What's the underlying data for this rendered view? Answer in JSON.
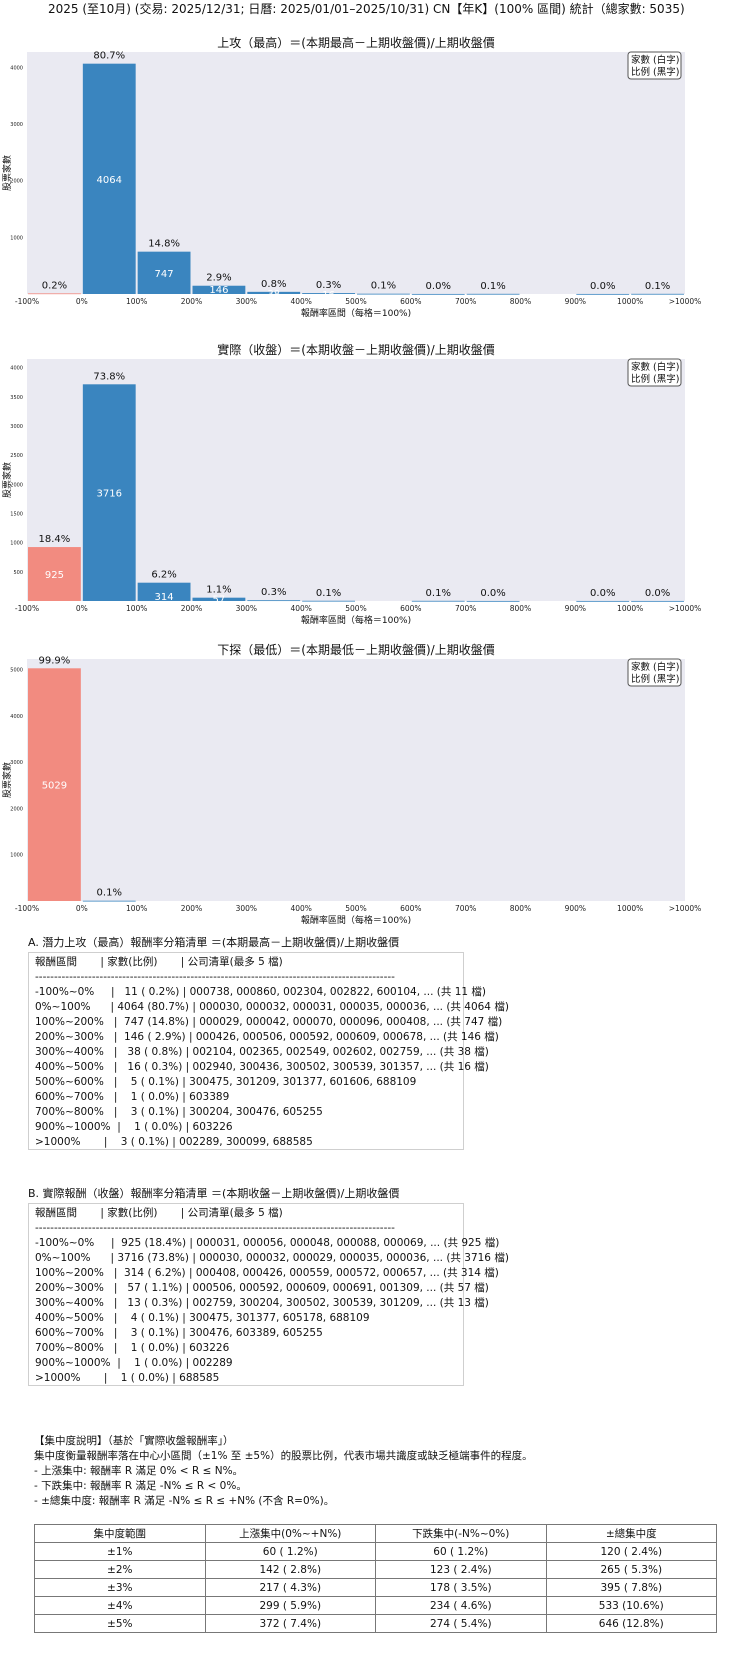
{
  "header": {
    "title": "2025 (至10月) (交易: 2025/12/31; 日曆: 2025/01/01–2025/10/31) CN【年K】(100% 區間) 統計（總家數: 5035)"
  },
  "legend": {
    "line1": "家數 (白字)",
    "line2": "比例 (黑字)"
  },
  "colors": {
    "positive": "#3a85bf",
    "negative": "#f28b80",
    "panel_bg": "#eaeaf2"
  },
  "chart_data": [
    {
      "type": "bar",
      "title": "上攻（最高）＝(本期最高－上期收盤價)/上期收盤價",
      "xlabel": "報酬率區間（每格＝100%)",
      "ylabel": "股票家數",
      "ylim": [
        0,
        4270
      ],
      "yticks": [
        0,
        1000,
        2000,
        3000,
        4000
      ],
      "xticks": [
        "-100%",
        "0%",
        "100%",
        "200%",
        "300%",
        "400%",
        "500%",
        "600%",
        "700%",
        "800%",
        "900%",
        "1000%",
        ">1000%"
      ],
      "bins": [
        "-100%~0%",
        "0%~100%",
        "100%~200%",
        "200%~300%",
        "300%~400%",
        "400%~500%",
        "500%~600%",
        "600%~700%",
        "700%~800%",
        "800%~900%",
        "900%~1000%",
        ">1000%"
      ],
      "counts": [
        11,
        4064,
        747,
        146,
        38,
        16,
        5,
        1,
        3,
        0,
        1,
        3
      ],
      "percent_labels": [
        "0.2%",
        "80.7%",
        "14.8%",
        "2.9%",
        "0.8%",
        "0.3%",
        "0.1%",
        "0.0%",
        "0.1%",
        "",
        "0.0%",
        "0.1%"
      ],
      "count_labels": [
        "",
        "4064",
        "747",
        "146",
        "38",
        "16",
        "",
        "",
        "",
        "",
        "",
        ""
      ]
    },
    {
      "type": "bar",
      "title": "實際（收盤）＝(本期收盤－上期收盤價)/上期收盤價",
      "xlabel": "報酬率區間（每格＝100%)",
      "ylabel": "股票家數",
      "ylim": [
        0,
        4150
      ],
      "yticks": [
        0,
        500,
        1000,
        1500,
        2000,
        2500,
        3000,
        3500,
        4000
      ],
      "xticks": [
        "-100%",
        "0%",
        "100%",
        "200%",
        "300%",
        "400%",
        "500%",
        "600%",
        "700%",
        "800%",
        "900%",
        "1000%",
        ">1000%"
      ],
      "bins": [
        "-100%~0%",
        "0%~100%",
        "100%~200%",
        "200%~300%",
        "300%~400%",
        "400%~500%",
        "500%~600%",
        "600%~700%",
        "700%~800%",
        "800%~900%",
        "900%~1000%",
        ">1000%"
      ],
      "counts": [
        925,
        3716,
        314,
        57,
        13,
        4,
        0,
        3,
        1,
        0,
        1,
        1
      ],
      "percent_labels": [
        "18.4%",
        "73.8%",
        "6.2%",
        "1.1%",
        "0.3%",
        "0.1%",
        "",
        "0.1%",
        "0.0%",
        "",
        "0.0%",
        "0.0%"
      ],
      "count_labels": [
        "925",
        "3716",
        "314",
        "57",
        "",
        "",
        "",
        "",
        "",
        "",
        "",
        ""
      ]
    },
    {
      "type": "bar",
      "title": "下探（最低）＝(本期最低－上期收盤價)/上期收盤價",
      "xlabel": "報酬率區間（每格＝100%)",
      "ylabel": "股票家數",
      "ylim": [
        0,
        5230
      ],
      "yticks": [
        0,
        1000,
        2000,
        3000,
        4000,
        5000
      ],
      "xticks": [
        "-100%",
        "0%",
        "100%",
        "200%",
        "300%",
        "400%",
        "500%",
        "600%",
        "700%",
        "800%",
        "900%",
        "1000%",
        ">1000%"
      ],
      "bins": [
        "-100%~0%",
        "0%~100%",
        "100%~200%",
        "200%~300%",
        "300%~400%",
        "400%~500%",
        "500%~600%",
        "600%~700%",
        "700%~800%",
        "800%~900%",
        "900%~1000%",
        ">1000%"
      ],
      "counts": [
        5029,
        6,
        0,
        0,
        0,
        0,
        0,
        0,
        0,
        0,
        0,
        0
      ],
      "percent_labels": [
        "99.9%",
        "0.1%",
        "",
        "",
        "",
        "",
        "",
        "",
        "",
        "",
        "",
        ""
      ],
      "count_labels": [
        "5029",
        "",
        "",
        "",
        "",
        "",
        "",
        "",
        "",
        "",
        "",
        ""
      ]
    }
  ],
  "listA": {
    "title": "A. 潛力上攻（最高）報酬率分箱清單 ＝(本期最高－上期收盤價)/上期收盤價",
    "lines": [
      "報酬區間       | 家數(比例)       | 公司清單(最多 5 檔)",
      "-----------------------------------------------------------------------------------------------",
      "-100%~0%     |   11 ( 0.2%) | 000738, 000860, 002304, 002822, 600104, ... (共 11 檔)",
      "0%~100%      | 4064 (80.7%) | 000030, 000032, 000031, 000035, 000036, ... (共 4064 檔)",
      "100%~200%   |  747 (14.8%) | 000029, 000042, 000070, 000096, 000408, ... (共 747 檔)",
      "200%~300%   |  146 ( 2.9%) | 000426, 000506, 000592, 000609, 000678, ... (共 146 檔)",
      "300%~400%   |   38 ( 0.8%) | 002104, 002365, 002549, 002602, 002759, ... (共 38 檔)",
      "400%~500%   |   16 ( 0.3%) | 002940, 300436, 300502, 300539, 301357, ... (共 16 檔)",
      "500%~600%   |    5 ( 0.1%) | 300475, 301209, 301377, 601606, 688109",
      "600%~700%   |    1 ( 0.0%) | 603389",
      "700%~800%   |    3 ( 0.1%) | 300204, 300476, 605255",
      "900%~1000%  |    1 ( 0.0%) | 603226",
      ">1000%       |    3 ( 0.1%) | 002289, 300099, 688585"
    ]
  },
  "listB": {
    "title": "B. 實際報酬（收盤）報酬率分箱清單 ＝(本期收盤－上期收盤價)/上期收盤價",
    "lines": [
      "報酬區間       | 家數(比例)       | 公司清單(最多 5 檔)",
      "-----------------------------------------------------------------------------------------------",
      "-100%~0%     |  925 (18.4%) | 000031, 000056, 000048, 000088, 000069, ... (共 925 檔)",
      "0%~100%      | 3716 (73.8%) | 000030, 000032, 000029, 000035, 000036, ... (共 3716 檔)",
      "100%~200%   |  314 ( 6.2%) | 000408, 000426, 000559, 000572, 000657, ... (共 314 檔)",
      "200%~300%   |   57 ( 1.1%) | 000506, 000592, 000609, 000691, 001309, ... (共 57 檔)",
      "300%~400%   |   13 ( 0.3%) | 002759, 300204, 300502, 300539, 301209, ... (共 13 檔)",
      "400%~500%   |    4 ( 0.1%) | 300475, 301377, 605178, 688109",
      "600%~700%   |    3 ( 0.1%) | 300476, 603389, 605255",
      "700%~800%   |    1 ( 0.0%) | 603226",
      "900%~1000%  |    1 ( 0.0%) | 002289",
      ">1000%       |    1 ( 0.0%) | 688585"
    ]
  },
  "concentration_note": {
    "lines": [
      "【集中度說明】（基於「實際收盤報酬率」）",
      "集中度衡量報酬率落在中心小區間（±1% 至 ±5%）的股票比例，代表市場共識度或缺乏極端事件的程度。",
      " - 上漲集中: 報酬率 R 滿足 0% < R ≤ N%。",
      " - 下跌集中: 報酬率 R 滿足 -N% ≤ R < 0%。",
      " - ±總集中度: 報酬率 R 滿足 -N% ≤ R ≤ +N% (不含 R=0%)。"
    ]
  },
  "concentration_table": {
    "headers": [
      "集中度範圍",
      "上漲集中(0%~+N%)",
      "下跌集中(-N%~0%)",
      "±總集中度"
    ],
    "rows": [
      [
        "±1%",
        "60 ( 1.2%)",
        "60 ( 1.2%)",
        "120 ( 2.4%)"
      ],
      [
        "±2%",
        "142 ( 2.8%)",
        "123 ( 2.4%)",
        "265 ( 5.3%)"
      ],
      [
        "±3%",
        "217 ( 4.3%)",
        "178 ( 3.5%)",
        "395 ( 7.8%)"
      ],
      [
        "±4%",
        "299 ( 5.9%)",
        "234 ( 4.6%)",
        "533 (10.6%)"
      ],
      [
        "±5%",
        "372 ( 7.4%)",
        "274 ( 5.4%)",
        "646 (12.8%)"
      ]
    ]
  }
}
